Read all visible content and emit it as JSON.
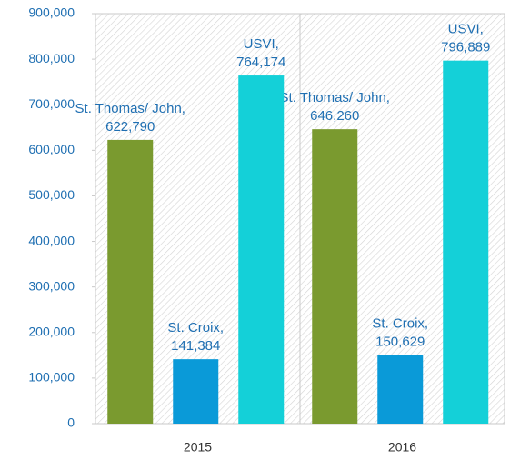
{
  "chart_data": {
    "type": "bar",
    "categories": [
      "2015",
      "2016"
    ],
    "series": [
      {
        "name": "St. Thomas/ John",
        "color": "#7a9a2f",
        "values": [
          622790,
          646260
        ],
        "value_labels": [
          [
            "St. Thomas/ John,",
            "622,790"
          ],
          [
            "St. Thomas/ John,",
            "646,260"
          ]
        ]
      },
      {
        "name": "St. Croix",
        "color": "#0a9ad8",
        "values": [
          141384,
          150629
        ],
        "value_labels": [
          [
            "St. Croix,",
            "141,384"
          ],
          [
            "St. Croix,",
            "150,629"
          ]
        ]
      },
      {
        "name": "USVI",
        "color": "#14d0d8",
        "values": [
          764174,
          796889
        ],
        "value_labels": [
          [
            "USVI,",
            "764,174"
          ],
          [
            "USVI,",
            "796,889"
          ]
        ]
      }
    ],
    "ylim": [
      0,
      900000
    ],
    "yticks": [
      0,
      {
        "value": 100000,
        "label": "100,000"
      },
      {
        "value": 200000,
        "label": "200,000"
      },
      {
        "value": 300000,
        "label": "300,000"
      },
      {
        "value": 400000,
        "label": "400,000"
      },
      {
        "value": 500000,
        "label": "500,000"
      },
      {
        "value": 600000,
        "label": "600,000"
      },
      {
        "value": 700000,
        "label": "700,000"
      },
      {
        "value": 800000,
        "label": "800,000"
      },
      {
        "value": 900000,
        "label": "900,000"
      }
    ],
    "grid": false
  }
}
